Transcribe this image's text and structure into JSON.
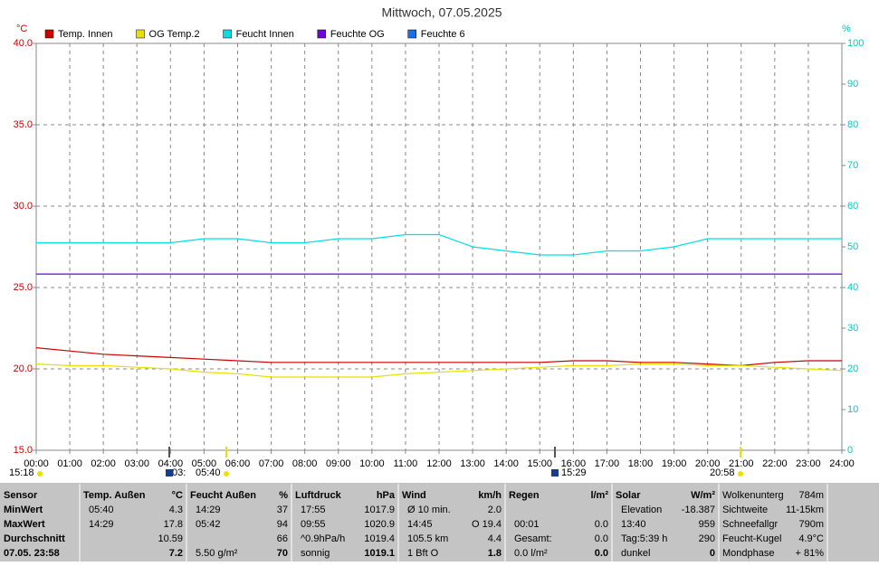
{
  "chart_data": {
    "type": "line",
    "title": "Mittwoch, 07.05.2025",
    "y_label": "°C",
    "y2_label": "%",
    "x": [
      0,
      1,
      2,
      3,
      4,
      5,
      6,
      7,
      8,
      9,
      10,
      11,
      12,
      13,
      14,
      15,
      16,
      17,
      18,
      19,
      20,
      21,
      22,
      23,
      24
    ],
    "xlim": [
      0,
      24
    ],
    "xticks": [
      {
        "value": 0,
        "label": "00:00"
      },
      {
        "value": 1,
        "label": "01:00"
      },
      {
        "value": 2,
        "label": "02:00"
      },
      {
        "value": 3,
        "label": "03:00"
      },
      {
        "value": 4,
        "label": "04:00"
      },
      {
        "value": 5,
        "label": "05:00"
      },
      {
        "value": 6,
        "label": "06:00"
      },
      {
        "value": 7,
        "label": "07:00"
      },
      {
        "value": 8,
        "label": "08:00"
      },
      {
        "value": 9,
        "label": "09:00"
      },
      {
        "value": 10,
        "label": "10:00"
      },
      {
        "value": 11,
        "label": "11:00"
      },
      {
        "value": 12,
        "label": "12:00"
      },
      {
        "value": 13,
        "label": "13:00"
      },
      {
        "value": 14,
        "label": "14:00"
      },
      {
        "value": 15,
        "label": "15:00"
      },
      {
        "value": 16,
        "label": "16:00"
      },
      {
        "value": 17,
        "label": "17:00"
      },
      {
        "value": 18,
        "label": "18:00"
      },
      {
        "value": 19,
        "label": "19:00"
      },
      {
        "value": 20,
        "label": "20:00"
      },
      {
        "value": 21,
        "label": "21:00"
      },
      {
        "value": 22,
        "label": "22:00"
      },
      {
        "value": 23,
        "label": "23:00"
      },
      {
        "value": 24,
        "label": "24:00"
      }
    ],
    "ylim": [
      15,
      40
    ],
    "yticks": [
      {
        "value": 15,
        "label": "15.0"
      },
      {
        "value": 20,
        "label": "20.0"
      },
      {
        "value": 25,
        "label": "25.0"
      },
      {
        "value": 30,
        "label": "30.0"
      },
      {
        "value": 35,
        "label": "35.0"
      },
      {
        "value": 40,
        "label": "40.0"
      }
    ],
    "y2lim": [
      0,
      100
    ],
    "y2ticks": [
      0,
      10,
      20,
      30,
      40,
      50,
      60,
      70,
      80,
      90,
      100
    ],
    "grid": true,
    "series": [
      {
        "name": "Temp. Innen",
        "color": "#cc0000",
        "values": [
          21.3,
          21.1,
          20.9,
          20.8,
          20.7,
          20.6,
          20.5,
          20.4,
          20.4,
          20.4,
          20.4,
          20.4,
          20.4,
          20.4,
          20.4,
          20.4,
          20.5,
          20.5,
          20.4,
          20.4,
          20.3,
          20.2,
          20.4,
          20.5,
          20.5
        ]
      },
      {
        "name": "OG Temp.2",
        "color": "#e8e000",
        "values": [
          20.3,
          20.2,
          20.2,
          20.1,
          20.0,
          19.8,
          19.7,
          19.5,
          19.5,
          19.5,
          19.5,
          19.7,
          19.8,
          19.9,
          20.0,
          20.1,
          20.2,
          20.2,
          20.3,
          20.3,
          20.2,
          20.2,
          20.1,
          20.0,
          19.9
        ]
      },
      {
        "name": "Feucht Innen",
        "color": "#00e0e0",
        "axis": "y2",
        "values": [
          51,
          51,
          51,
          51,
          51,
          52,
          52,
          51,
          51,
          52,
          52,
          53,
          53,
          50,
          49,
          48,
          48,
          49,
          49,
          50,
          52,
          52,
          52,
          52,
          52
        ]
      },
      {
        "name": "Feuchte OG",
        "color": "#7000e0",
        "axis": "y2",
        "values": [
          43.3,
          43.3,
          43.3,
          43.3,
          43.3,
          43.3,
          43.3,
          43.3,
          43.3,
          43.3,
          43.3,
          43.3,
          43.3,
          43.3,
          43.3,
          43.3,
          43.3,
          43.3,
          43.3,
          43.3,
          43.3,
          43.3,
          43.3,
          43.3,
          43.3
        ]
      },
      {
        "name": "Feuchte 6",
        "color": "#1a6ee8",
        "axis": "y2",
        "values": [
          null,
          null,
          null,
          null,
          null,
          null,
          null,
          null,
          null,
          null,
          null,
          null,
          null,
          null,
          null,
          null,
          null,
          null,
          null,
          null,
          null,
          null,
          null,
          null,
          null
        ]
      }
    ],
    "annotations": [
      "15:18",
      "03:",
      "05:40",
      "15:29",
      "20:58"
    ]
  },
  "table": {
    "panels": [
      {
        "header": [
          "Sensor"
        ],
        "rows": [
          [
            "MinWert"
          ],
          [
            "MaxWert"
          ],
          [
            "Durchschnitt"
          ],
          [
            "07.05. 23:58"
          ]
        ]
      },
      {
        "header": [
          "Temp. Außen",
          "°C"
        ],
        "rows": [
          [
            "05:40",
            "4.3"
          ],
          [
            "14:29",
            "17.8"
          ],
          [
            null,
            "10.59"
          ],
          [
            null,
            "7.2"
          ]
        ]
      },
      {
        "header": [
          "Feucht Außen",
          "%"
        ],
        "rows": [
          [
            "14:29",
            "37"
          ],
          [
            "05:42",
            "94"
          ],
          [
            null,
            "66"
          ],
          [
            "5.50 g/m²",
            "70"
          ]
        ]
      },
      {
        "header": [
          "Luftdruck",
          "hPa"
        ],
        "rows": [
          [
            "17:55",
            "1017.9"
          ],
          [
            "09:55",
            "1020.9"
          ],
          [
            "^0.9hPa/h",
            "1019.4"
          ],
          [
            "sonnig",
            "1019.1"
          ]
        ]
      },
      {
        "header": [
          "Wind",
          "km/h"
        ],
        "rows": [
          [
            "Ø 10 min.",
            "2.0"
          ],
          [
            "14:45",
            "O 19.4"
          ],
          [
            "105.5 km",
            "4.4"
          ],
          [
            "1 Bft O",
            "1.8"
          ]
        ]
      },
      {
        "header": [
          "Regen",
          "l/m²"
        ],
        "rows": [
          [
            null,
            null
          ],
          [
            "00:01",
            "0.0"
          ],
          [
            "Gesamt:",
            "0.0"
          ],
          [
            "0.0 l/m²",
            "0.0"
          ]
        ]
      },
      {
        "header": [
          "Solar",
          "W/m²"
        ],
        "rows": [
          [
            "Elevation",
            "-18.387"
          ],
          [
            "13:40",
            "959"
          ],
          [
            "Tag:5:39 h",
            "290"
          ],
          [
            "dunkel",
            "0"
          ]
        ]
      },
      {
        "rows": [
          [
            "Wolkenunterg",
            "784m"
          ],
          [
            "Sichtweite",
            "11-15km"
          ],
          [
            "Schneefallgr",
            "790m"
          ],
          [
            "Feucht-Kugel",
            "4.9°C"
          ],
          [
            "Mondphase",
            "+ 81%"
          ]
        ]
      }
    ]
  }
}
